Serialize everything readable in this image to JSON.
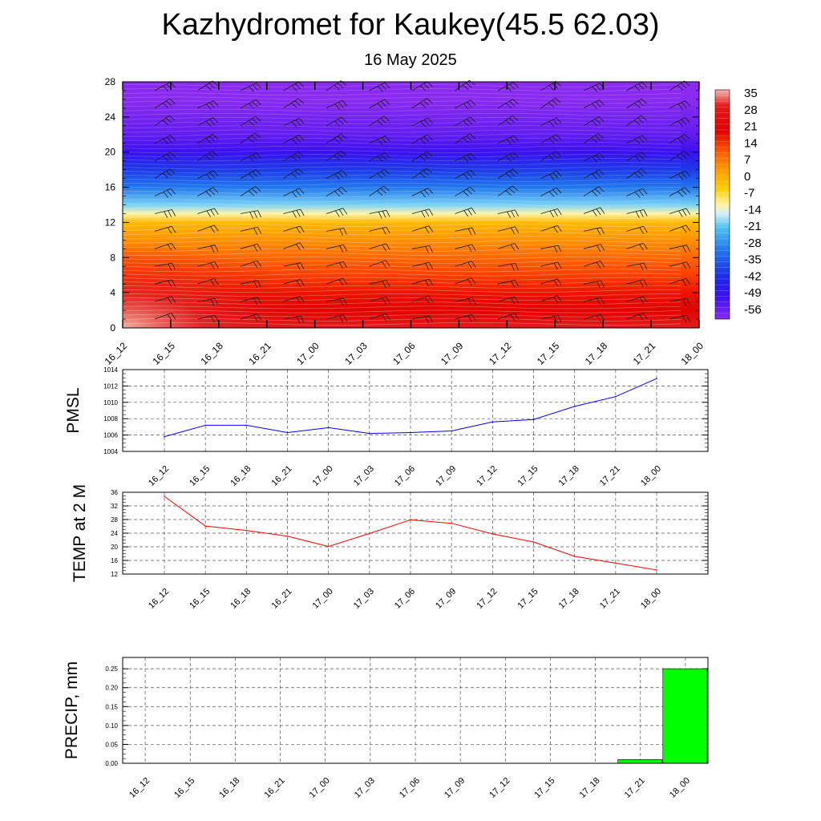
{
  "header": {
    "title": "Kazhydromet for Kaukey(45.5 62.03)",
    "subtitle": "16 May 2025"
  },
  "chart_data": [
    {
      "type": "heatmap",
      "y_ticks": [
        "0",
        "4",
        "8",
        "12",
        "16",
        "20",
        "24",
        "28"
      ],
      "ylim": [
        0,
        28
      ],
      "x_ticks": [
        "16_12",
        "16_15",
        "16_18",
        "16_21",
        "17_00",
        "17_03",
        "17_06",
        "17_09",
        "17_12",
        "17_15",
        "17_18",
        "17_21",
        "18_00"
      ],
      "colorbar": {
        "labels": [
          "35",
          "28",
          "21",
          "14",
          "7",
          "0",
          "-7",
          "-14",
          "-21",
          "-28",
          "-35",
          "-42",
          "-49",
          "-56"
        ],
        "range": [
          -60,
          38
        ]
      },
      "overlay": "wind-barbs",
      "profile": {
        "heights": [
          0,
          2,
          4,
          6,
          8,
          10,
          12,
          13,
          14,
          16,
          18,
          20,
          22,
          24,
          26,
          28
        ],
        "values": [
          30,
          25,
          20,
          15,
          10,
          5,
          0,
          -8,
          -16,
          -30,
          -42,
          -52,
          -56,
          -58,
          -60,
          -60
        ]
      }
    },
    {
      "type": "line",
      "ylabel": "PMSL",
      "ylim": [
        1004,
        1014
      ],
      "y_ticks": [
        "1004",
        "1006",
        "1008",
        "1010",
        "1012",
        "1014"
      ],
      "categories": [
        "16_12",
        "16_15",
        "16_18",
        "16_21",
        "17_00",
        "17_03",
        "17_06",
        "17_09",
        "17_12",
        "17_15",
        "17_18",
        "17_21",
        "18_00"
      ],
      "values": [
        1005.8,
        1007.2,
        1007.2,
        1006.3,
        1006.9,
        1006.2,
        1006.3,
        1006.5,
        1007.6,
        1007.9,
        1009.5,
        1010.7,
        1012.9
      ],
      "color": "#0000ff",
      "grid": true
    },
    {
      "type": "line",
      "ylabel": "TEMP at 2 M",
      "ylim": [
        12,
        36
      ],
      "y_ticks": [
        "12",
        "16",
        "20",
        "24",
        "28",
        "32",
        "36"
      ],
      "categories": [
        "16_12",
        "16_15",
        "16_18",
        "16_21",
        "17_00",
        "17_03",
        "17_06",
        "17_09",
        "17_12",
        "17_15",
        "17_18",
        "17_21",
        "18_00"
      ],
      "values": [
        34.8,
        26.1,
        24.8,
        23.1,
        20.1,
        23.9,
        27.9,
        26.9,
        23.8,
        21.4,
        17.2,
        15.2,
        13.2
      ],
      "color": "#ff0000",
      "grid": true
    },
    {
      "type": "bar",
      "ylabel": "PRECIP, mm",
      "ylim": [
        0,
        0.28
      ],
      "y_ticks": [
        "0.00",
        "0.05",
        "0.10",
        "0.15",
        "0.20",
        "0.25"
      ],
      "categories": [
        "16_12",
        "16_15",
        "16_18",
        "16_21",
        "17_00",
        "17_03",
        "17_06",
        "17_09",
        "17_12",
        "17_15",
        "17_18",
        "17_21",
        "18_00"
      ],
      "values": [
        0,
        0,
        0,
        0,
        0,
        0,
        0,
        0,
        0,
        0,
        0,
        0.01,
        0.25
      ],
      "color": "#00ff00",
      "grid": true
    }
  ]
}
